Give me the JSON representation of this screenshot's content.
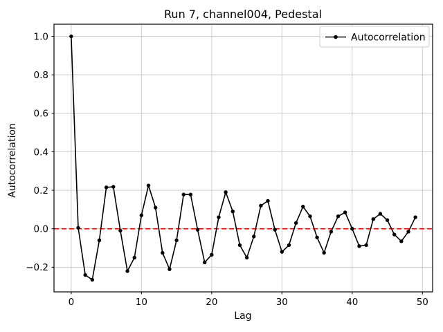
{
  "chart_data": {
    "type": "line",
    "title": "Run 7, channel004, Pedestal",
    "xlabel": "Lag",
    "ylabel": "Autocorrelation",
    "legend": [
      "Autocorrelation"
    ],
    "legend_position": "upper right",
    "grid": true,
    "xlim": [
      -2.45,
      51.45
    ],
    "ylim": [
      -0.328,
      1.063
    ],
    "xticks": [
      0,
      10,
      20,
      30,
      40,
      50
    ],
    "xtick_labels": [
      "0",
      "10",
      "20",
      "30",
      "40",
      "50"
    ],
    "yticks": [
      1.0,
      0.8,
      0.6,
      0.4,
      0.2,
      0.0,
      -0.2
    ],
    "ytick_labels": [
      "1.0",
      "0.8",
      "0.6",
      "0.4",
      "0.2",
      "0.0",
      "−0.2"
    ],
    "reference_line": {
      "y": 0.0,
      "color": "#ff0000",
      "style": "dashed"
    },
    "grid_color": "#cccccc",
    "x": [
      0,
      1,
      2,
      3,
      4,
      5,
      6,
      7,
      8,
      9,
      10,
      11,
      12,
      13,
      14,
      15,
      16,
      17,
      18,
      19,
      20,
      21,
      22,
      23,
      24,
      25,
      26,
      27,
      28,
      29,
      30,
      31,
      32,
      33,
      34,
      35,
      36,
      37,
      38,
      39,
      40,
      41,
      42,
      43,
      44,
      45,
      46,
      47,
      48,
      49
    ],
    "series": [
      {
        "name": "Autocorrelation",
        "color": "#000000",
        "marker": "circle",
        "values": [
          1.0,
          0.005,
          -0.24,
          -0.265,
          -0.06,
          0.215,
          0.218,
          -0.01,
          -0.22,
          -0.15,
          0.07,
          0.225,
          0.11,
          -0.125,
          -0.21,
          -0.06,
          0.178,
          0.178,
          -0.005,
          -0.175,
          -0.135,
          0.06,
          0.19,
          0.09,
          -0.085,
          -0.15,
          -0.04,
          0.12,
          0.145,
          -0.005,
          -0.12,
          -0.085,
          0.03,
          0.115,
          0.065,
          -0.045,
          -0.125,
          -0.015,
          0.065,
          0.085,
          0.0,
          -0.09,
          -0.085,
          0.05,
          0.078,
          0.045,
          -0.03,
          -0.065,
          -0.015,
          0.06
        ]
      }
    ]
  }
}
